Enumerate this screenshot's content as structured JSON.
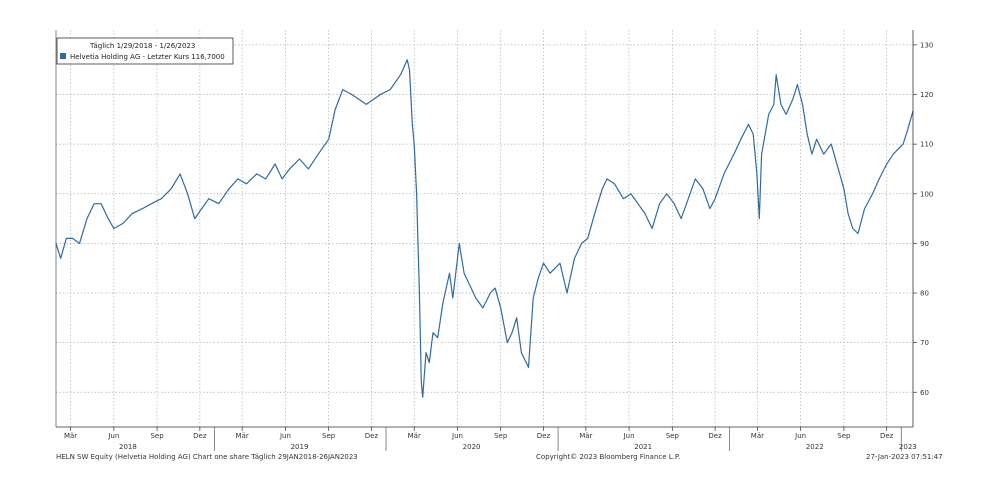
{
  "footer": {
    "left": "HELN SW Equity (Helvetia Holding AG) Chart one share  Täglich 29JAN2018-26JAN2023",
    "middle": "Copyright© 2023 Bloomberg Finance L.P.",
    "right": "27-Jan-2023 07:51:47"
  },
  "chart_data": {
    "type": "line",
    "legend": {
      "title": "Täglich 1/29/2018 - 1/26/2023",
      "entry": "Helvetia Holding AG - Letzter Kurs 116,7000",
      "placement": "top-left"
    },
    "colors": {
      "line": "#2f6aa4",
      "grid": "#b0b0b0"
    },
    "grid": true,
    "y_axis": {
      "position": "right",
      "ylim": [
        53,
        133
      ],
      "ticks": [
        60,
        70,
        80,
        90,
        100,
        110,
        120,
        130
      ]
    },
    "xlim": [
      "2018-01-29",
      "2023-01-26"
    ],
    "month_ticks": [
      {
        "date": "2018-03-01",
        "label": "Mär"
      },
      {
        "date": "2018-06-01",
        "label": "Jun"
      },
      {
        "date": "2018-09-01",
        "label": "Sep"
      },
      {
        "date": "2018-12-01",
        "label": "Dez"
      },
      {
        "date": "2019-03-01",
        "label": "Mär"
      },
      {
        "date": "2019-06-01",
        "label": "Jun"
      },
      {
        "date": "2019-09-01",
        "label": "Sep"
      },
      {
        "date": "2019-12-01",
        "label": "Dez"
      },
      {
        "date": "2020-03-01",
        "label": "Mär"
      },
      {
        "date": "2020-06-01",
        "label": "Jun"
      },
      {
        "date": "2020-09-01",
        "label": "Sep"
      },
      {
        "date": "2020-12-01",
        "label": "Dez"
      },
      {
        "date": "2021-03-01",
        "label": "Mär"
      },
      {
        "date": "2021-06-01",
        "label": "Jun"
      },
      {
        "date": "2021-09-01",
        "label": "Sep"
      },
      {
        "date": "2021-12-01",
        "label": "Dez"
      },
      {
        "date": "2022-03-01",
        "label": "Mär"
      },
      {
        "date": "2022-06-01",
        "label": "Jun"
      },
      {
        "date": "2022-09-01",
        "label": "Sep"
      },
      {
        "date": "2022-12-01",
        "label": "Dez"
      }
    ],
    "year_ticks": [
      {
        "date": "2018-07-01",
        "label": "2018"
      },
      {
        "date": "2019-07-01",
        "label": "2019"
      },
      {
        "date": "2020-07-01",
        "label": "2020"
      },
      {
        "date": "2021-07-01",
        "label": "2021"
      },
      {
        "date": "2022-07-01",
        "label": "2022"
      },
      {
        "date": "2023-01-15",
        "label": "2023"
      }
    ],
    "year_dividers": [
      "2019-01-01",
      "2020-01-01",
      "2021-01-01",
      "2022-01-01",
      "2023-01-01"
    ],
    "series": [
      {
        "points": [
          [
            "2018-01-29",
            90
          ],
          [
            "2018-02-08",
            87
          ],
          [
            "2018-02-20",
            91
          ],
          [
            "2018-03-05",
            91
          ],
          [
            "2018-03-20",
            90
          ],
          [
            "2018-04-05",
            95
          ],
          [
            "2018-04-20",
            98
          ],
          [
            "2018-05-05",
            98
          ],
          [
            "2018-05-20",
            95
          ],
          [
            "2018-06-01",
            93
          ],
          [
            "2018-06-20",
            94
          ],
          [
            "2018-07-10",
            96
          ],
          [
            "2018-08-01",
            97
          ],
          [
            "2018-08-20",
            98
          ],
          [
            "2018-09-10",
            99
          ],
          [
            "2018-10-01",
            101
          ],
          [
            "2018-10-20",
            104
          ],
          [
            "2018-11-05",
            100
          ],
          [
            "2018-11-20",
            95
          ],
          [
            "2018-12-05",
            97
          ],
          [
            "2018-12-20",
            99
          ],
          [
            "2019-01-10",
            98
          ],
          [
            "2019-02-01",
            101
          ],
          [
            "2019-02-20",
            103
          ],
          [
            "2019-03-10",
            102
          ],
          [
            "2019-04-01",
            104
          ],
          [
            "2019-04-20",
            103
          ],
          [
            "2019-05-10",
            106
          ],
          [
            "2019-05-25",
            103
          ],
          [
            "2019-06-10",
            105
          ],
          [
            "2019-07-01",
            107
          ],
          [
            "2019-07-20",
            105
          ],
          [
            "2019-08-10",
            108
          ],
          [
            "2019-09-01",
            111
          ],
          [
            "2019-09-15",
            117
          ],
          [
            "2019-10-01",
            121
          ],
          [
            "2019-10-20",
            120
          ],
          [
            "2019-11-05",
            119
          ],
          [
            "2019-11-20",
            118
          ],
          [
            "2019-12-05",
            119
          ],
          [
            "2019-12-20",
            120
          ],
          [
            "2020-01-10",
            121
          ],
          [
            "2020-02-01",
            124
          ],
          [
            "2020-02-15",
            127
          ],
          [
            "2020-02-20",
            125
          ],
          [
            "2020-02-26",
            114
          ],
          [
            "2020-03-01",
            110
          ],
          [
            "2020-03-06",
            100
          ],
          [
            "2020-03-12",
            80
          ],
          [
            "2020-03-16",
            62
          ],
          [
            "2020-03-19",
            59
          ],
          [
            "2020-03-26",
            68
          ],
          [
            "2020-04-02",
            66
          ],
          [
            "2020-04-10",
            72
          ],
          [
            "2020-04-20",
            71
          ],
          [
            "2020-05-01",
            78
          ],
          [
            "2020-05-15",
            84
          ],
          [
            "2020-05-22",
            79
          ],
          [
            "2020-06-05",
            90
          ],
          [
            "2020-06-15",
            84
          ],
          [
            "2020-06-25",
            82
          ],
          [
            "2020-07-10",
            79
          ],
          [
            "2020-07-25",
            77
          ],
          [
            "2020-08-10",
            80
          ],
          [
            "2020-08-20",
            81
          ],
          [
            "2020-09-01",
            77
          ],
          [
            "2020-09-15",
            70
          ],
          [
            "2020-09-25",
            72
          ],
          [
            "2020-10-05",
            75
          ],
          [
            "2020-10-15",
            68
          ],
          [
            "2020-10-30",
            65
          ],
          [
            "2020-11-09",
            79
          ],
          [
            "2020-11-20",
            83
          ],
          [
            "2020-12-01",
            86
          ],
          [
            "2020-12-15",
            84
          ],
          [
            "2021-01-05",
            86
          ],
          [
            "2021-01-20",
            80
          ],
          [
            "2021-02-05",
            87
          ],
          [
            "2021-02-20",
            90
          ],
          [
            "2021-03-05",
            91
          ],
          [
            "2021-03-20",
            96
          ],
          [
            "2021-04-05",
            101
          ],
          [
            "2021-04-15",
            103
          ],
          [
            "2021-05-01",
            102
          ],
          [
            "2021-05-20",
            99
          ],
          [
            "2021-06-05",
            100
          ],
          [
            "2021-06-20",
            98
          ],
          [
            "2021-07-05",
            96
          ],
          [
            "2021-07-20",
            93
          ],
          [
            "2021-08-05",
            98
          ],
          [
            "2021-08-20",
            100
          ],
          [
            "2021-09-05",
            98
          ],
          [
            "2021-09-20",
            95
          ],
          [
            "2021-10-05",
            99
          ],
          [
            "2021-10-20",
            103
          ],
          [
            "2021-11-05",
            101
          ],
          [
            "2021-11-20",
            97
          ],
          [
            "2021-12-01",
            99
          ],
          [
            "2021-12-20",
            104
          ],
          [
            "2022-01-10",
            108
          ],
          [
            "2022-01-25",
            111
          ],
          [
            "2022-02-10",
            114
          ],
          [
            "2022-02-20",
            112
          ],
          [
            "2022-02-28",
            104
          ],
          [
            "2022-03-05",
            95
          ],
          [
            "2022-03-10",
            108
          ],
          [
            "2022-03-25",
            116
          ],
          [
            "2022-04-05",
            118
          ],
          [
            "2022-04-10",
            124
          ],
          [
            "2022-04-20",
            118
          ],
          [
            "2022-05-01",
            116
          ],
          [
            "2022-05-15",
            119
          ],
          [
            "2022-05-25",
            122
          ],
          [
            "2022-06-05",
            118
          ],
          [
            "2022-06-15",
            112
          ],
          [
            "2022-06-25",
            108
          ],
          [
            "2022-07-05",
            111
          ],
          [
            "2022-07-20",
            108
          ],
          [
            "2022-08-05",
            110
          ],
          [
            "2022-08-20",
            105
          ],
          [
            "2022-09-01",
            101
          ],
          [
            "2022-09-10",
            96
          ],
          [
            "2022-09-20",
            93
          ],
          [
            "2022-10-01",
            92
          ],
          [
            "2022-10-15",
            97
          ],
          [
            "2022-11-01",
            100
          ],
          [
            "2022-11-15",
            103
          ],
          [
            "2022-12-01",
            106
          ],
          [
            "2022-12-15",
            108
          ],
          [
            "2023-01-05",
            110
          ],
          [
            "2023-01-15",
            113
          ],
          [
            "2023-01-26",
            116.7
          ]
        ]
      }
    ]
  }
}
